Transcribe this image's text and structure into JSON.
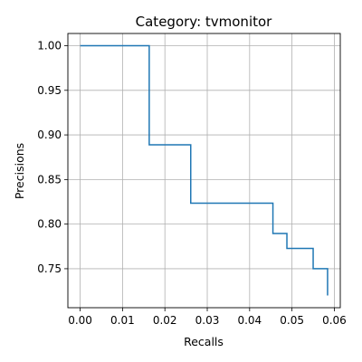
{
  "chart_data": {
    "type": "line",
    "title": "Category: tvmonitor",
    "xlabel": "Recalls",
    "ylabel": "Precisions",
    "xlim": [
      -0.0029,
      0.0614
    ],
    "ylim": [
      0.7063,
      1.0137
    ],
    "grid": true,
    "series_color": "#1f77b4",
    "x_ticks": [
      {
        "value": 0.0,
        "label": "0.00"
      },
      {
        "value": 0.01,
        "label": "0.01"
      },
      {
        "value": 0.02,
        "label": "0.02"
      },
      {
        "value": 0.03,
        "label": "0.03"
      },
      {
        "value": 0.04,
        "label": "0.04"
      },
      {
        "value": 0.05,
        "label": "0.05"
      },
      {
        "value": 0.06,
        "label": "0.06"
      }
    ],
    "y_ticks": [
      {
        "value": 0.75,
        "label": "0.75"
      },
      {
        "value": 0.8,
        "label": "0.80"
      },
      {
        "value": 0.85,
        "label": "0.85"
      },
      {
        "value": 0.9,
        "label": "0.90"
      },
      {
        "value": 0.95,
        "label": "0.95"
      },
      {
        "value": 1.0,
        "label": "1.00"
      }
    ],
    "series": [
      {
        "x": [
          0.0,
          0.0163,
          0.0163,
          0.0261,
          0.0261,
          0.0455,
          0.0455,
          0.0488,
          0.0488,
          0.055,
          0.055,
          0.0584,
          0.0584
        ],
        "y": [
          1.0,
          1.0,
          0.8889,
          0.8889,
          0.8235,
          0.8235,
          0.7895,
          0.7895,
          0.7727,
          0.7727,
          0.75,
          0.75,
          0.72
        ]
      }
    ]
  }
}
